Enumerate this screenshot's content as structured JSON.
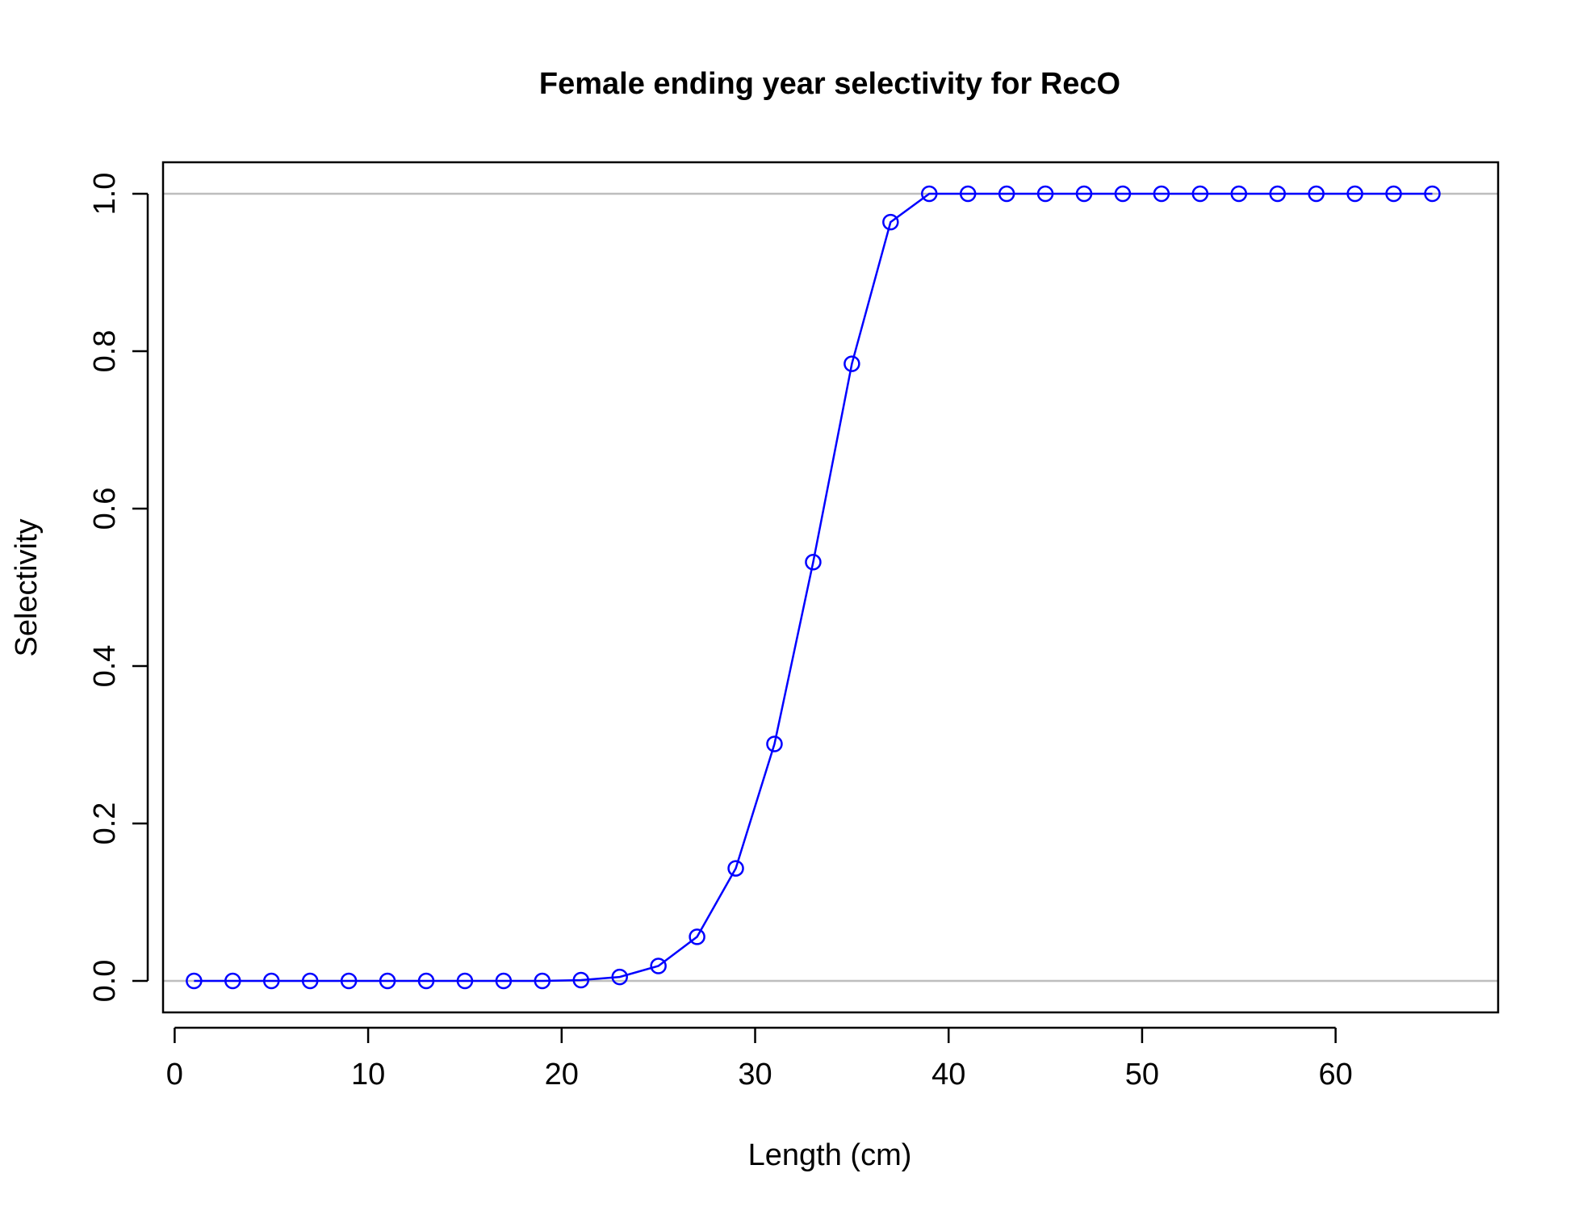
{
  "chart_data": {
    "type": "line",
    "title": "Female ending year selectivity for RecO",
    "xlabel": "Length (cm)",
    "ylabel": "Selectivity",
    "xlim": [
      -0.6,
      68.4
    ],
    "ylim": [
      -0.04,
      1.04
    ],
    "xticks": [
      "0",
      "10",
      "20",
      "30",
      "40",
      "50",
      "60"
    ],
    "yticks": [
      "0.0",
      "0.2",
      "0.4",
      "0.6",
      "0.8",
      "1.0"
    ],
    "reference_lines": [
      0,
      1
    ],
    "grid": false,
    "colors": {
      "series": "#0000ff",
      "reference": "#bebebe",
      "axis": "#000000"
    },
    "series": [
      {
        "x": [
          1,
          3,
          5,
          7,
          9,
          11,
          13,
          15,
          17,
          19,
          21,
          23,
          25,
          27,
          29,
          31,
          33,
          35,
          37,
          39,
          41,
          43,
          45,
          47,
          49,
          51,
          53,
          55,
          57,
          59,
          61,
          63,
          65
        ],
        "values": [
          0,
          0,
          0,
          0,
          0,
          0,
          0,
          0,
          0,
          0,
          0.001,
          0.005,
          0.019,
          0.056,
          0.143,
          0.301,
          0.532,
          0.784,
          0.964,
          1,
          1,
          1,
          1,
          1,
          1,
          1,
          1,
          1,
          1,
          1,
          1,
          1,
          1
        ]
      }
    ]
  }
}
